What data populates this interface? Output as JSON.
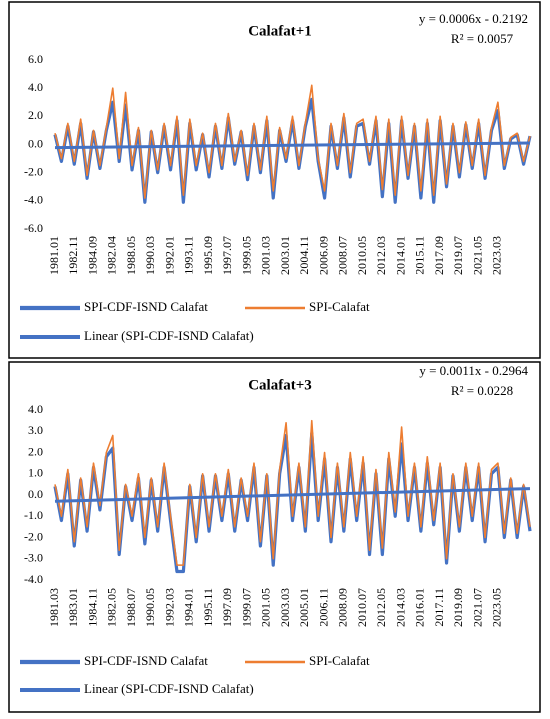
{
  "chart_data": [
    {
      "type": "line",
      "title": "Calafat+1",
      "categories": [
        "1981.01",
        null,
        null,
        "1982.11",
        null,
        null,
        "1984.09",
        null,
        null,
        "1982.04",
        null,
        null,
        "1988.05",
        null,
        null,
        "1990.03",
        null,
        null,
        "1992.01",
        null,
        null,
        "1993.11",
        null,
        null,
        "1995.09",
        null,
        null,
        "1997.07",
        null,
        null,
        "1999.05",
        null,
        null,
        "2001.03",
        null,
        null,
        "2003.01",
        null,
        null,
        "2004.11",
        null,
        null,
        "2006.09",
        null,
        null,
        "2008.07",
        null,
        null,
        "2010.05",
        null,
        null,
        "2012.03",
        null,
        null,
        "2014.01",
        null,
        null,
        "2015.11",
        null,
        null,
        "2017.09",
        null,
        null,
        "2019.07",
        null,
        null,
        "2021.05",
        null,
        null,
        "2023.03",
        null,
        null,
        null,
        null,
        null
      ],
      "series": [
        {
          "name": "SPI-CDF-ISND Calafat",
          "color": "#4472c4",
          "values": [
            0.7,
            -1.2,
            1.3,
            -1.4,
            1.5,
            -2.4,
            0.9,
            -1.7,
            1.0,
            3.0,
            -1.2,
            2.8,
            -1.8,
            1.0,
            -4.1,
            0.9,
            -2.0,
            1.3,
            -1.8,
            1.7,
            -4.1,
            1.5,
            -1.8,
            0.7,
            -2.3,
            1.3,
            -1.7,
            1.9,
            -1.4,
            0.9,
            -2.5,
            1.3,
            -2.0,
            1.7,
            -3.8,
            1.0,
            -1.2,
            1.7,
            -1.7,
            1.3,
            3.2,
            -1.2,
            -3.8,
            1.3,
            -1.7,
            1.9,
            -2.3,
            1.3,
            1.5,
            -1.4,
            1.7,
            -3.7,
            1.5,
            -4.1,
            1.7,
            -2.4,
            1.3,
            -3.8,
            1.5,
            -4.1,
            1.7,
            -3.0,
            1.3,
            -2.3,
            1.4,
            -1.7,
            1.5,
            -2.4,
            1.0,
            2.4,
            -1.7,
            0.4,
            0.7,
            -1.4,
            0.6
          ]
        },
        {
          "name": "SPI-Calafat",
          "color": "#ed7d31",
          "values": [
            0.8,
            -1.0,
            1.5,
            -1.2,
            1.8,
            -2.2,
            1.0,
            -1.5,
            1.2,
            4.0,
            -1.0,
            3.7,
            -1.5,
            1.2,
            -3.8,
            1.0,
            -1.8,
            1.5,
            -1.5,
            2.0,
            -3.6,
            1.8,
            -1.5,
            0.8,
            -2.0,
            1.5,
            -1.5,
            2.2,
            -1.2,
            1.0,
            -2.2,
            1.5,
            -1.8,
            2.0,
            -3.3,
            1.2,
            -1.0,
            2.0,
            -1.5,
            1.5,
            4.2,
            -1.0,
            -3.3,
            1.5,
            -1.5,
            2.2,
            -2.0,
            1.5,
            1.8,
            -1.2,
            2.0,
            -3.2,
            1.8,
            -3.6,
            2.0,
            -2.2,
            1.5,
            -3.3,
            1.8,
            -3.6,
            2.0,
            -2.8,
            1.5,
            -2.0,
            1.6,
            -1.5,
            1.8,
            -2.2,
            1.2,
            3.0,
            -1.5,
            0.5,
            0.8,
            -1.2,
            0.6
          ]
        }
      ],
      "trendline": {
        "name": "Linear (SPI-CDF-ISND Calafat)",
        "color": "#4472c4",
        "slope": 0.0006,
        "intercept": -0.2192,
        "equation": "y = 0.0006x - 0.2192",
        "r2": "R² = 0.0057"
      },
      "ylim": [
        -6,
        6
      ],
      "yticks": [
        {
          "value": -6,
          "label": "-6.0"
        },
        {
          "value": -4,
          "label": "-4.0"
        },
        {
          "value": -2,
          "label": "-2.0"
        },
        {
          "value": 0,
          "label": "0.0"
        },
        {
          "value": 2,
          "label": "2.0"
        },
        {
          "value": 4,
          "label": "4.0"
        },
        {
          "value": 6,
          "label": "6.0"
        }
      ],
      "grid": false
    },
    {
      "type": "line",
      "title": "Calafat+3",
      "categories": [
        "1981.03",
        null,
        null,
        "1983.01",
        null,
        null,
        "1984.11",
        null,
        null,
        "1982.05",
        null,
        null,
        "1988.07",
        null,
        null,
        "1990.05",
        null,
        null,
        "1992.03",
        null,
        null,
        "1994.01",
        null,
        null,
        "1995.11",
        null,
        null,
        "1997.09",
        null,
        null,
        "1999.07",
        null,
        null,
        "2001.05",
        null,
        null,
        "2003.03",
        null,
        null,
        "2005.01",
        null,
        null,
        "2006.11",
        null,
        null,
        "2008.09",
        null,
        null,
        "2010.07",
        null,
        null,
        "2012.05",
        null,
        null,
        "2014.03",
        null,
        null,
        "2016.01",
        null,
        null,
        "2017.11",
        null,
        null,
        "2019.09",
        null,
        null,
        "2021.07",
        null,
        null,
        "2023.05",
        null,
        null,
        null,
        null,
        null
      ],
      "series": [
        {
          "name": "SPI-CDF-ISND Calafat",
          "color": "#4472c4",
          "values": [
            0.4,
            -1.2,
            1.0,
            -2.4,
            0.7,
            -1.7,
            1.3,
            -0.7,
            1.8,
            2.2,
            -2.8,
            0.4,
            -1.2,
            0.8,
            -2.3,
            0.7,
            -1.7,
            1.3,
            -1.2,
            -3.6,
            -3.6,
            0.4,
            -2.2,
            0.9,
            -1.7,
            0.9,
            -1.2,
            1.0,
            -1.7,
            0.7,
            -1.2,
            1.3,
            -2.4,
            0.9,
            -3.3,
            1.0,
            2.8,
            -1.2,
            1.3,
            -1.7,
            2.9,
            -1.2,
            1.7,
            -2.2,
            1.3,
            -1.7,
            1.7,
            -1.2,
            1.5,
            -2.8,
            1.0,
            -2.8,
            1.7,
            -1.0,
            2.4,
            -1.2,
            1.3,
            -1.7,
            1.5,
            -1.4,
            1.3,
            -3.2,
            0.9,
            -1.7,
            1.3,
            -1.2,
            1.3,
            -2.2,
            1.0,
            1.3,
            -2.0,
            0.7,
            -2.0,
            0.4,
            -1.7
          ]
        },
        {
          "name": "SPI-Calafat",
          "color": "#ed7d31",
          "values": [
            0.5,
            -1.0,
            1.2,
            -2.2,
            0.8,
            -1.5,
            1.5,
            -0.5,
            2.0,
            2.8,
            -2.6,
            0.5,
            -1.0,
            1.0,
            -2.0,
            0.8,
            -1.5,
            1.5,
            -1.0,
            -3.3,
            -3.3,
            0.5,
            -2.0,
            1.0,
            -1.5,
            1.0,
            -1.0,
            1.2,
            -1.5,
            0.8,
            -1.0,
            1.5,
            -2.2,
            1.0,
            -3.0,
            1.2,
            3.4,
            -1.0,
            1.5,
            -1.5,
            3.5,
            -1.0,
            2.0,
            -2.0,
            1.5,
            -1.5,
            2.0,
            -1.0,
            1.8,
            -2.6,
            1.2,
            -2.5,
            2.0,
            -0.8,
            3.2,
            -1.0,
            1.5,
            -1.5,
            1.8,
            -1.2,
            1.5,
            -3.0,
            1.0,
            -1.5,
            1.5,
            -1.0,
            1.5,
            -2.0,
            1.2,
            1.5,
            -1.8,
            0.8,
            -1.8,
            0.5,
            -1.5
          ]
        }
      ],
      "trendline": {
        "name": "Linear (SPI-CDF-ISND Calafat)",
        "color": "#4472c4",
        "slope": 0.0011,
        "intercept": -0.2964,
        "equation": "y = 0.0011x - 0.2964",
        "r2": "R² = 0.0228"
      },
      "ylim": [
        -4,
        4
      ],
      "yticks": [
        {
          "value": -4,
          "label": "-4.0"
        },
        {
          "value": -3,
          "label": "-3.0"
        },
        {
          "value": -2,
          "label": "-2.0"
        },
        {
          "value": -1,
          "label": "-1.0"
        },
        {
          "value": 0,
          "label": "0.0"
        },
        {
          "value": 1,
          "label": "1.0"
        },
        {
          "value": 2,
          "label": "2.0"
        },
        {
          "value": 3,
          "label": "3.0"
        },
        {
          "value": 4,
          "label": "4.0"
        }
      ],
      "grid": false
    }
  ]
}
